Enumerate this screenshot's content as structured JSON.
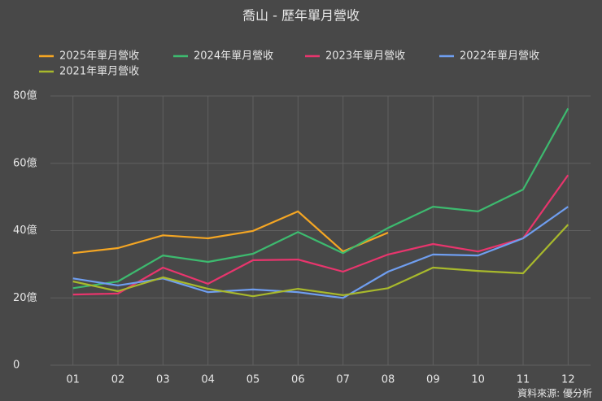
{
  "chart_data": {
    "type": "line",
    "title": "喬山 - 歷年單月營收",
    "categories": [
      "01",
      "02",
      "03",
      "04",
      "05",
      "06",
      "07",
      "08",
      "09",
      "10",
      "11",
      "12"
    ],
    "series": [
      {
        "name": "2025年單月營收",
        "color": "#f5a623",
        "values": [
          33.3,
          34.8,
          38.6,
          37.7,
          39.9,
          45.7,
          33.8,
          39.4,
          null,
          null,
          null,
          null
        ]
      },
      {
        "name": "2024年單月營收",
        "color": "#3dba6f",
        "values": [
          22.9,
          24.9,
          32.6,
          30.7,
          33.1,
          39.6,
          33.3,
          40.8,
          47.1,
          45.7,
          52.2,
          76.3
        ]
      },
      {
        "name": "2023年單月營收",
        "color": "#e8356d",
        "values": [
          21.0,
          21.3,
          29.0,
          24.2,
          31.2,
          31.4,
          27.8,
          32.9,
          36.0,
          33.8,
          37.7,
          56.5
        ]
      },
      {
        "name": "2022年單月營收",
        "color": "#6f9ef0",
        "values": [
          25.8,
          23.7,
          25.8,
          21.7,
          22.5,
          21.7,
          20.0,
          27.8,
          32.9,
          32.6,
          37.7,
          47.1
        ]
      },
      {
        "name": "2021年單月營收",
        "color": "#a8b92c",
        "values": [
          24.9,
          22.0,
          26.1,
          22.7,
          20.5,
          22.7,
          20.8,
          22.9,
          29.0,
          28.0,
          27.3,
          41.8
        ]
      }
    ],
    "ylim": [
      0,
      80
    ],
    "yticks": [
      0,
      {
        "value": 20,
        "label": "20億"
      },
      {
        "value": 40,
        "label": "40億"
      },
      {
        "value": 60,
        "label": "60億"
      },
      {
        "value": 80,
        "label": "80億"
      }
    ],
    "grid": true,
    "legend": "top",
    "source": "資料來源: 優分析"
  }
}
